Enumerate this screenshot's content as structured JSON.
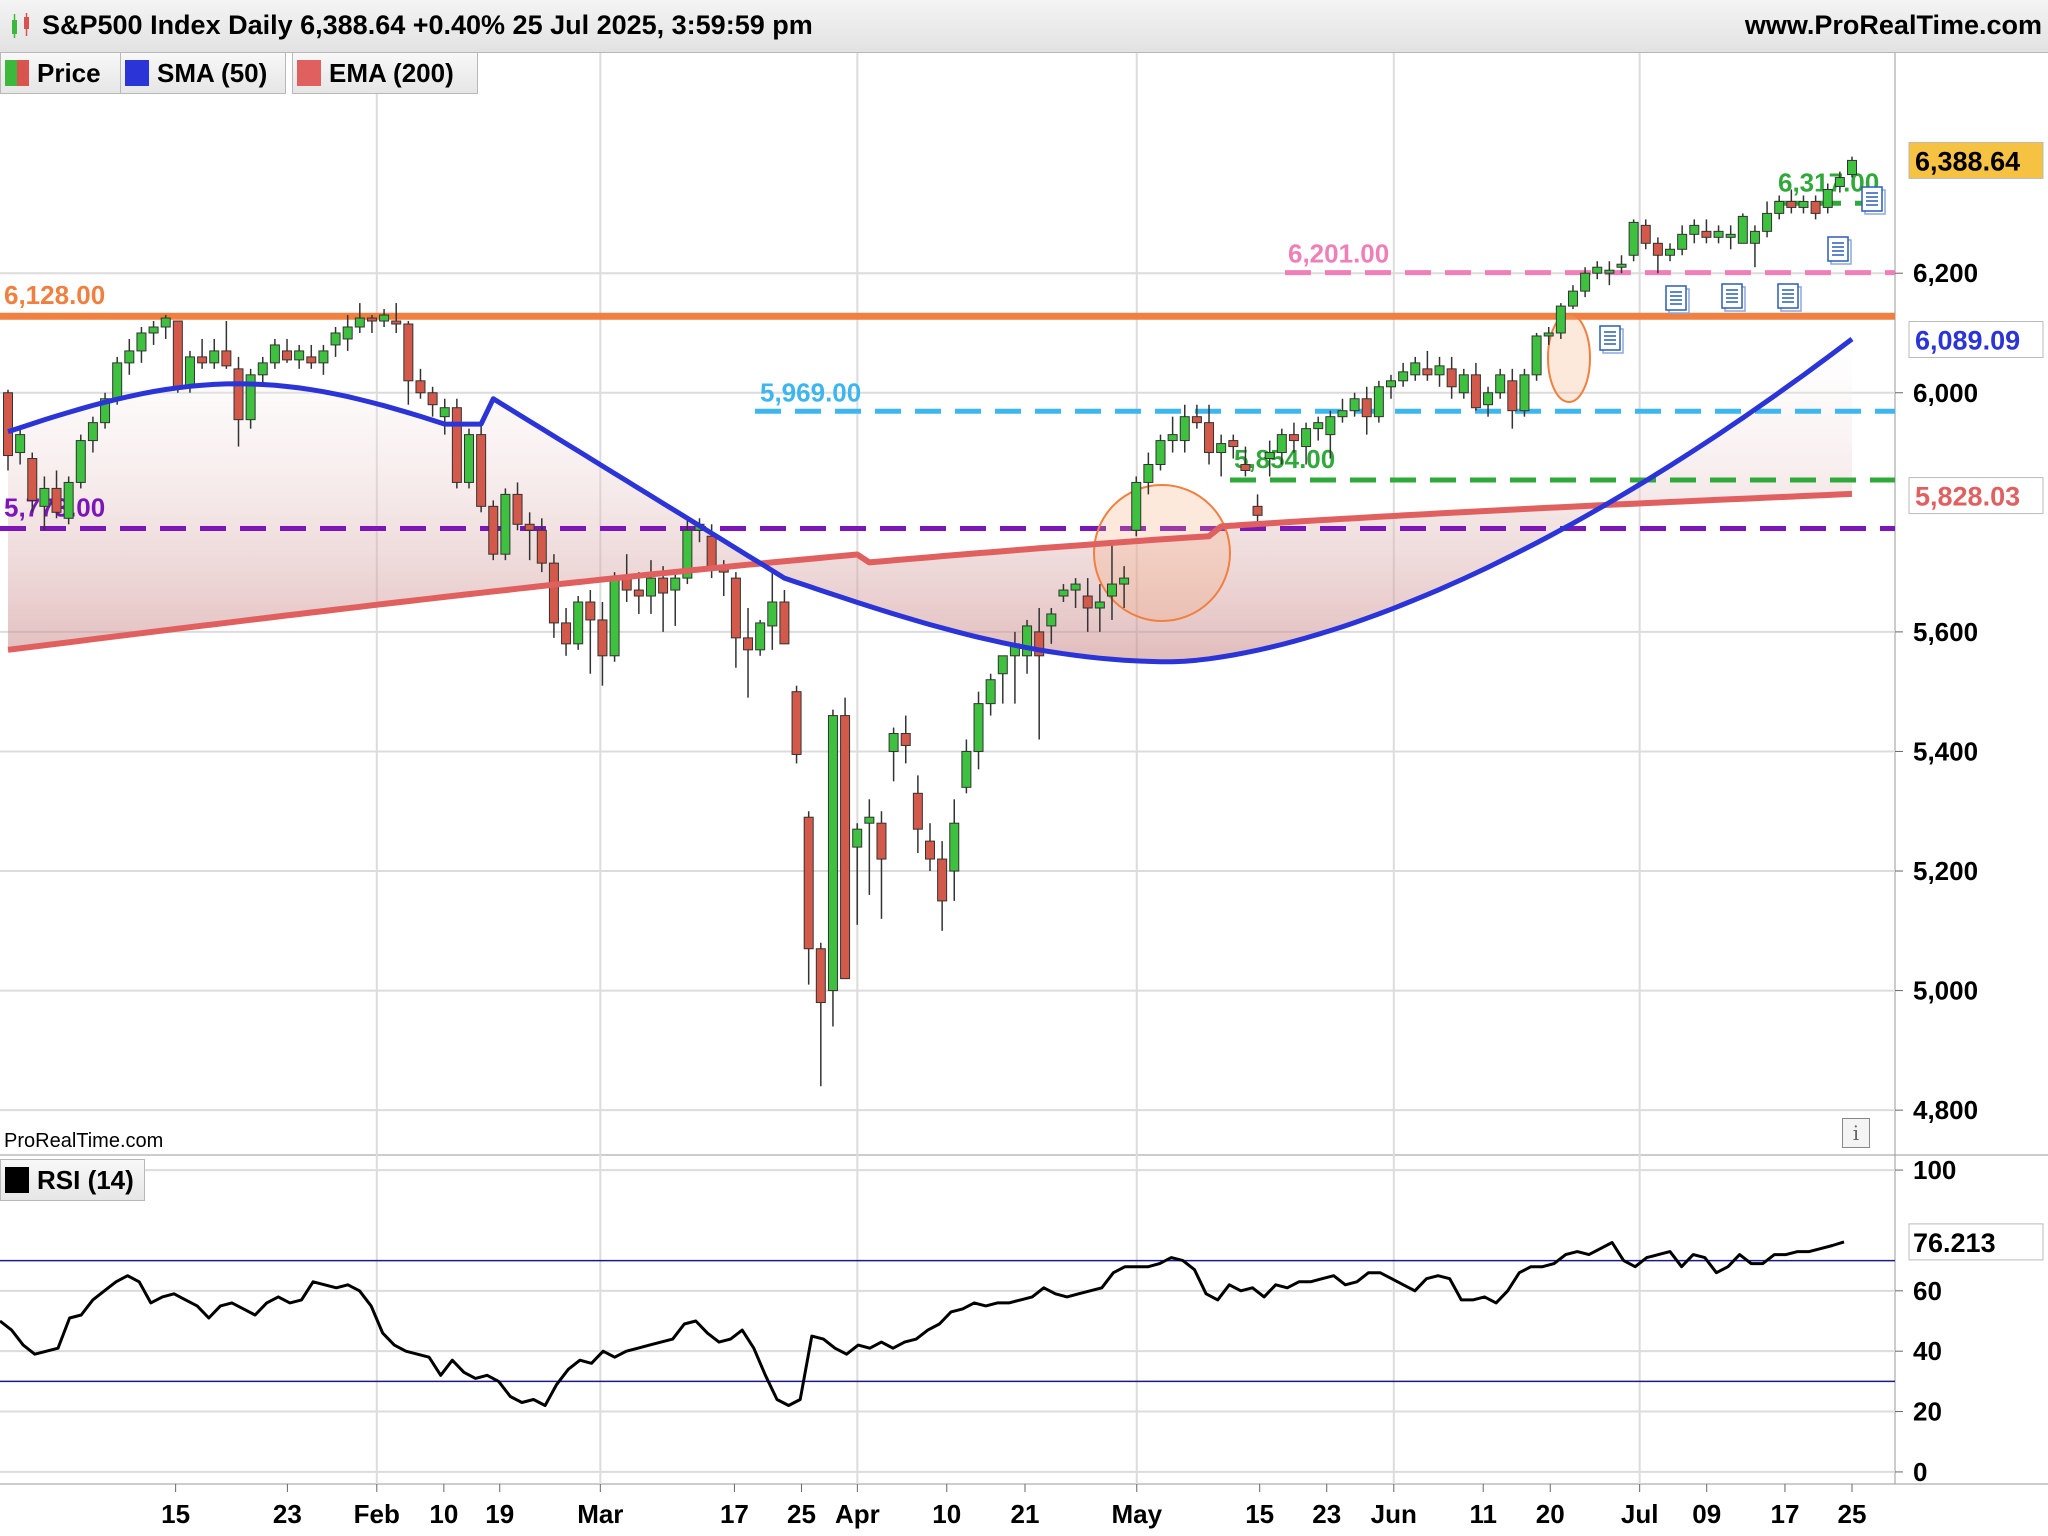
{
  "header": {
    "title": "S&P500 Index Daily 6,388.64 +0.40% 25 Jul 2025, 3:59:59 pm",
    "site": "www.ProRealTime.com",
    "watermark": "ProRealTime.com"
  },
  "legend": [
    {
      "label": "Price",
      "color": "#3cb83c",
      "color2": "#d9534f"
    },
    {
      "label": "SMA (50)",
      "color": "#2b34d6"
    },
    {
      "label": "EMA (200)",
      "color": "#e06060"
    }
  ],
  "rsi_legend": {
    "label": "RSI (14)",
    "color": "#000000"
  },
  "colors": {
    "up": "#3ec13e",
    "down": "#d35a4a",
    "sma": "#2b34d6",
    "ema": "#e06060",
    "grid": "#dcdcdc"
  },
  "chart_data": [
    {
      "type": "candlestick",
      "title": "S&P500 Index Daily",
      "x_ticks": [
        "15",
        "23",
        "Feb",
        "10",
        "19",
        "Mar",
        "17",
        "25",
        "Apr",
        "10",
        "21",
        "May",
        "15",
        "23",
        "Jun",
        "11",
        "20",
        "Jul",
        "09",
        "17",
        "25"
      ],
      "y_ticks": [
        "4,800",
        "5,000",
        "5,200",
        "5,400",
        "5,600",
        "6,000",
        "6,200"
      ],
      "y_range": [
        4730,
        6570
      ],
      "last_price": "6,388.64",
      "candles_ohlc": [
        [
          6000,
          6005,
          5870,
          5895
        ],
        [
          5900,
          5940,
          5880,
          5930
        ],
        [
          5890,
          5900,
          5800,
          5820
        ],
        [
          5810,
          5860,
          5770,
          5840
        ],
        [
          5840,
          5870,
          5790,
          5800
        ],
        [
          5790,
          5860,
          5780,
          5850
        ],
        [
          5850,
          5930,
          5840,
          5920
        ],
        [
          5920,
          5960,
          5900,
          5950
        ],
        [
          5950,
          6000,
          5940,
          5990
        ],
        [
          5990,
          6060,
          5980,
          6050
        ],
        [
          6050,
          6090,
          6030,
          6070
        ],
        [
          6070,
          6110,
          6050,
          6100
        ],
        [
          6100,
          6120,
          6080,
          6110
        ],
        [
          6110,
          6130,
          6090,
          6125
        ],
        [
          6120,
          6110,
          6000,
          6010
        ],
        [
          6010,
          6070,
          6000,
          6060
        ],
        [
          6060,
          6090,
          6040,
          6050
        ],
        [
          6050,
          6090,
          6040,
          6070
        ],
        [
          6070,
          6120,
          6040,
          6045
        ],
        [
          6040,
          6060,
          5910,
          5955
        ],
        [
          5955,
          6040,
          5940,
          6030
        ],
        [
          6030,
          6060,
          6010,
          6050
        ],
        [
          6050,
          6090,
          6040,
          6080
        ],
        [
          6070,
          6090,
          6050,
          6055
        ],
        [
          6055,
          6080,
          6040,
          6070
        ],
        [
          6060,
          6080,
          6040,
          6050
        ],
        [
          6050,
          6080,
          6030,
          6070
        ],
        [
          6080,
          6110,
          6060,
          6100
        ],
        [
          6090,
          6130,
          6070,
          6110
        ],
        [
          6110,
          6150,
          6100,
          6125
        ],
        [
          6125,
          6130,
          6100,
          6120
        ],
        [
          6120,
          6140,
          6110,
          6130
        ],
        [
          6120,
          6150,
          6100,
          6115
        ],
        [
          6115,
          6120,
          5980,
          6020
        ],
        [
          6020,
          6040,
          5990,
          6000
        ],
        [
          6000,
          6010,
          5960,
          5980
        ],
        [
          5960,
          5990,
          5930,
          5975
        ],
        [
          5975,
          5990,
          5840,
          5850
        ],
        [
          5850,
          5940,
          5840,
          5930
        ],
        [
          5930,
          5950,
          5800,
          5810
        ],
        [
          5810,
          5820,
          5720,
          5730
        ],
        [
          5730,
          5840,
          5720,
          5830
        ],
        [
          5830,
          5850,
          5770,
          5780
        ],
        [
          5780,
          5800,
          5720,
          5770
        ],
        [
          5770,
          5790,
          5700,
          5715
        ],
        [
          5715,
          5730,
          5590,
          5615
        ],
        [
          5615,
          5640,
          5560,
          5580
        ],
        [
          5580,
          5660,
          5570,
          5650
        ],
        [
          5650,
          5670,
          5530,
          5620
        ],
        [
          5620,
          5650,
          5510,
          5560
        ],
        [
          5560,
          5700,
          5550,
          5690
        ],
        [
          5690,
          5730,
          5650,
          5670
        ],
        [
          5670,
          5700,
          5630,
          5660
        ],
        [
          5660,
          5720,
          5630,
          5690
        ],
        [
          5690,
          5710,
          5600,
          5665
        ],
        [
          5670,
          5700,
          5610,
          5690
        ],
        [
          5690,
          5790,
          5680,
          5770
        ],
        [
          5770,
          5790,
          5750,
          5780
        ],
        [
          5760,
          5780,
          5690,
          5710
        ],
        [
          5710,
          5720,
          5660,
          5700
        ],
        [
          5690,
          5700,
          5540,
          5590
        ],
        [
          5590,
          5640,
          5490,
          5570
        ],
        [
          5570,
          5620,
          5560,
          5615
        ],
        [
          5610,
          5700,
          5570,
          5650
        ],
        [
          5650,
          5670,
          5580,
          5580
        ],
        [
          5500,
          5510,
          5380,
          5395
        ],
        [
          5290,
          5300,
          5010,
          5070
        ],
        [
          5070,
          5080,
          4840,
          4980
        ],
        [
          5000,
          5470,
          4940,
          5460
        ],
        [
          5460,
          5490,
          5030,
          5020
        ],
        [
          5240,
          5280,
          5110,
          5270
        ],
        [
          5280,
          5320,
          5160,
          5290
        ],
        [
          5280,
          5300,
          5120,
          5220
        ],
        [
          5400,
          5440,
          5350,
          5430
        ],
        [
          5430,
          5460,
          5380,
          5410
        ],
        [
          5330,
          5360,
          5230,
          5270
        ],
        [
          5250,
          5280,
          5200,
          5220
        ],
        [
          5220,
          5250,
          5100,
          5150
        ],
        [
          5200,
          5320,
          5150,
          5280
        ],
        [
          5340,
          5420,
          5330,
          5400
        ],
        [
          5400,
          5500,
          5370,
          5480
        ],
        [
          5480,
          5530,
          5460,
          5520
        ],
        [
          5530,
          5560,
          5480,
          5560
        ],
        [
          5560,
          5600,
          5480,
          5580
        ],
        [
          5560,
          5620,
          5530,
          5610
        ],
        [
          5600,
          5640,
          5420,
          5560
        ],
        [
          5610,
          5640,
          5580,
          5630
        ],
        [
          5660,
          5680,
          5650,
          5670
        ],
        [
          5670,
          5690,
          5640,
          5680
        ],
        [
          5660,
          5690,
          5600,
          5640
        ],
        [
          5640,
          5680,
          5600,
          5650
        ],
        [
          5660,
          5750,
          5620,
          5680
        ],
        [
          5680,
          5710,
          5640,
          5690
        ],
        [
          5770,
          5860,
          5760,
          5850
        ],
        [
          5850,
          5900,
          5830,
          5880
        ],
        [
          5880,
          5930,
          5870,
          5920
        ],
        [
          5920,
          5960,
          5900,
          5930
        ],
        [
          5920,
          5980,
          5900,
          5960
        ],
        [
          5960,
          5980,
          5940,
          5950
        ],
        [
          5950,
          5980,
          5880,
          5900
        ],
        [
          5900,
          5930,
          5860,
          5915
        ],
        [
          5920,
          5930,
          5890,
          5910
        ],
        [
          5880,
          5910,
          5860,
          5870
        ],
        [
          5810,
          5830,
          5780,
          5795
        ],
        [
          5890,
          5920,
          5860,
          5900
        ],
        [
          5900,
          5940,
          5880,
          5930
        ],
        [
          5930,
          5950,
          5900,
          5920
        ],
        [
          5910,
          5950,
          5880,
          5940
        ],
        [
          5940,
          5960,
          5920,
          5950
        ],
        [
          5930,
          5970,
          5890,
          5960
        ],
        [
          5960,
          5990,
          5950,
          5970
        ],
        [
          5970,
          6000,
          5960,
          5990
        ],
        [
          5990,
          6010,
          5930,
          5960
        ],
        [
          5960,
          6020,
          5950,
          6010
        ],
        [
          6010,
          6030,
          5990,
          6020
        ],
        [
          6020,
          6050,
          6010,
          6035
        ],
        [
          6030,
          6060,
          6020,
          6050
        ],
        [
          6040,
          6070,
          6020,
          6030
        ],
        [
          6030,
          6060,
          6010,
          6045
        ],
        [
          6040,
          6060,
          5990,
          6010
        ],
        [
          6000,
          6040,
          5990,
          6030
        ],
        [
          6030,
          6050,
          5970,
          5975
        ],
        [
          5980,
          6010,
          5960,
          6000
        ],
        [
          6000,
          6040,
          5990,
          6030
        ],
        [
          6020,
          6040,
          5940,
          5970
        ],
        [
          5970,
          6040,
          5960,
          6030
        ],
        [
          6030,
          6100,
          6020,
          6095
        ],
        [
          6095,
          6110,
          6080,
          6100
        ],
        [
          6100,
          6150,
          6090,
          6145
        ],
        [
          6145,
          6180,
          6140,
          6170
        ],
        [
          6170,
          6210,
          6160,
          6200
        ],
        [
          6200,
          6220,
          6190,
          6210
        ],
        [
          6200,
          6220,
          6180,
          6205
        ],
        [
          6210,
          6230,
          6200,
          6215
        ],
        [
          6230,
          6290,
          6220,
          6285
        ],
        [
          6280,
          6290,
          6240,
          6250
        ],
        [
          6250,
          6260,
          6200,
          6230
        ],
        [
          6230,
          6250,
          6220,
          6240
        ],
        [
          6240,
          6280,
          6230,
          6265
        ],
        [
          6265,
          6290,
          6250,
          6280
        ],
        [
          6270,
          6290,
          6250,
          6260
        ],
        [
          6260,
          6280,
          6250,
          6270
        ],
        [
          6260,
          6280,
          6240,
          6265
        ],
        [
          6250,
          6300,
          6250,
          6295
        ],
        [
          6250,
          6280,
          6210,
          6270
        ],
        [
          6270,
          6320,
          6260,
          6300
        ],
        [
          6300,
          6330,
          6290,
          6320
        ],
        [
          6320,
          6340,
          6300,
          6310
        ],
        [
          6310,
          6330,
          6300,
          6320
        ],
        [
          6320,
          6330,
          6290,
          6300
        ],
        [
          6310,
          6350,
          6300,
          6340
        ],
        [
          6345,
          6370,
          6335,
          6360
        ],
        [
          6365,
          6395,
          6360,
          6388.64
        ]
      ],
      "sma50": {
        "label": "SMA (50)",
        "value_label": "6,089.09"
      },
      "ema200": {
        "label": "EMA (200)",
        "value_label": "5,828.03"
      },
      "levels": [
        {
          "label": "6,128.00",
          "value": 6128,
          "style": "solid",
          "color": "#f08040"
        },
        {
          "label": "6,201.00",
          "value": 6201,
          "style": "dashed",
          "color": "#f07fb8"
        },
        {
          "label": "5,969.00",
          "value": 5969,
          "style": "dashed",
          "color": "#3db6f0"
        },
        {
          "label": "5,854.00",
          "value": 5854,
          "style": "dashed",
          "color": "#31a93a"
        },
        {
          "label": "5,773.00",
          "value": 5773,
          "style": "dashed",
          "color": "#7d16b8"
        },
        {
          "label": "6,317.00",
          "value": 6317,
          "style": "dashed",
          "color": "#31a93a"
        }
      ]
    },
    {
      "type": "line",
      "title": "RSI (14)",
      "y_ticks": [
        "100",
        "60",
        "40",
        "20",
        "0"
      ],
      "y_range": [
        -4,
        104
      ],
      "overbought": 70,
      "oversold": 30,
      "last_value": "76.213",
      "values": [
        50,
        47,
        42,
        39,
        40,
        41,
        51,
        52,
        57,
        60,
        63,
        65,
        63,
        56,
        58,
        59,
        57,
        55,
        51,
        55,
        56,
        54,
        52,
        56,
        58,
        56,
        57,
        63,
        62,
        61,
        62,
        60,
        55,
        46,
        42,
        40,
        39,
        38,
        32,
        37,
        33,
        31,
        32,
        30,
        25,
        23,
        24,
        22,
        29,
        34,
        37,
        36,
        40,
        38,
        40,
        41,
        42,
        43,
        44,
        49,
        50,
        46,
        43,
        44,
        47,
        41,
        32,
        24,
        22,
        24,
        45,
        44,
        41,
        39,
        42,
        41,
        43,
        41,
        43,
        44,
        47,
        49,
        53,
        54,
        56,
        55,
        56,
        56,
        57,
        58,
        61,
        59,
        58,
        59,
        60,
        61,
        66,
        68,
        68,
        68,
        69,
        71,
        70,
        67,
        59,
        57,
        62,
        60,
        61,
        58,
        62,
        61,
        63,
        63,
        64,
        65,
        62,
        63,
        66,
        66,
        64,
        62,
        60,
        64,
        65,
        64,
        57,
        57,
        58,
        56,
        60,
        66,
        68,
        68,
        69,
        72,
        73,
        72,
        74,
        76,
        70,
        68,
        71,
        72,
        73,
        68,
        72,
        71,
        66,
        68,
        72,
        69,
        69,
        72,
        72,
        73,
        73,
        74,
        75,
        76.2
      ]
    }
  ]
}
